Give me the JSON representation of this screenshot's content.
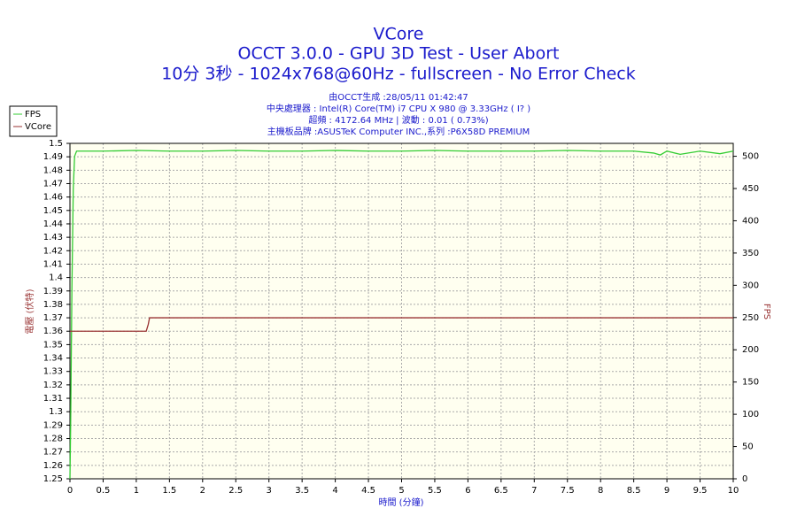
{
  "chart_data": {
    "type": "line",
    "title": "VCore",
    "subtitle": "OCCT 3.0.0 - GPU 3D Test - User Abort",
    "subtitle2": "10分 3秒 - 1024x768@60Hz - fullscreen - No Error Check",
    "info": [
      "由OCCT生成 :28/05/11 01:42:47",
      "中央處理器 : Intel(R) Core(TM) i7 CPU X 980 @ 3.33GHz (  I? )",
      "超頻 : 4172.64 MHz | 波動 : 0.01 ( 0.73%)",
      "主機板品牌 :ASUSTeK Computer INC.,系列 :P6X58D PREMIUM"
    ],
    "x_label": "時間 (分鐘)",
    "y_label": "電壓 (伏特)",
    "y2_label": "FPS",
    "xlim": [
      0,
      10
    ],
    "xticks": [
      0,
      0.5,
      1,
      1.5,
      2,
      2.5,
      3,
      3.5,
      4,
      4.5,
      5,
      5.5,
      6,
      6.5,
      7,
      7.5,
      8,
      8.5,
      9,
      9.5,
      10
    ],
    "ylim": [
      1.25,
      1.5
    ],
    "yticks": [
      1.25,
      1.26,
      1.27,
      1.28,
      1.29,
      1.3,
      1.31,
      1.32,
      1.33,
      1.34,
      1.35,
      1.36,
      1.37,
      1.38,
      1.39,
      1.4,
      1.41,
      1.42,
      1.43,
      1.44,
      1.45,
      1.46,
      1.47,
      1.48,
      1.49,
      1.5
    ],
    "y2lim": [
      0,
      520
    ],
    "y2ticks": [
      0,
      50,
      100,
      150,
      200,
      250,
      300,
      350,
      400,
      450,
      500
    ],
    "grid": true,
    "legend": "upper-left",
    "series": [
      {
        "name": "FPS",
        "color": "#33cc33",
        "axis": "y2",
        "x": [
          0,
          0.01,
          0.03,
          0.05,
          0.07,
          0.1,
          0.5,
          1,
          1.5,
          2,
          2.5,
          3,
          3.5,
          4,
          4.5,
          5,
          5.5,
          6,
          6.5,
          7,
          7.5,
          8,
          8.5,
          8.8,
          8.9,
          9,
          9.2,
          9.5,
          9.8,
          10
        ],
        "values": [
          0,
          80,
          300,
          450,
          500,
          508,
          508,
          509,
          508,
          508,
          509,
          508,
          508,
          509,
          508,
          508,
          509,
          508,
          508,
          508,
          509,
          508,
          508,
          505,
          502,
          508,
          503,
          508,
          504,
          508
        ]
      },
      {
        "name": "VCore",
        "color": "#993333",
        "x": [
          0,
          1.15,
          1.18,
          1.2,
          10
        ],
        "values": [
          1.36,
          1.36,
          1.365,
          1.37,
          1.37
        ]
      }
    ]
  }
}
